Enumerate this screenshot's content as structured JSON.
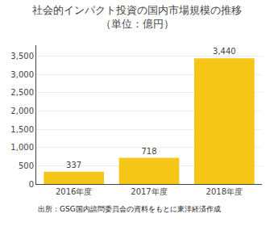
{
  "chart_data": {
    "type": "bar",
    "title": "社会的インパクト投資の国内市場規模の推移",
    "subtitle": "（単位：億円）",
    "categories": [
      "2016年度",
      "2017年度",
      "2018年度"
    ],
    "values": [
      337,
      718,
      3440
    ],
    "value_labels": [
      "337",
      "718",
      "3,440"
    ],
    "data_labels": true,
    "color": "#F5C518",
    "ylim": [
      0,
      3800
    ],
    "yticks": [
      0,
      500,
      {
        "value": 1000,
        "label": "1,000"
      },
      {
        "value": 1500,
        "label": "1,500"
      },
      {
        "value": 2000,
        "label": "2,000"
      },
      {
        "value": 2500,
        "label": "2,500"
      },
      {
        "value": 3000,
        "label": "3,000"
      },
      {
        "value": 3500,
        "label": "3,500"
      }
    ],
    "grid": true,
    "annotations": [
      "出所：GSG国内諮問委員会の資料をもとに東洋経済作成"
    ]
  }
}
